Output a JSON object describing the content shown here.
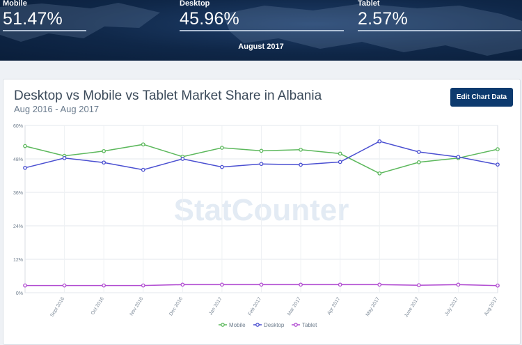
{
  "header": {
    "stats": [
      {
        "label": "Mobile",
        "value": "51.47%"
      },
      {
        "label": "Desktop",
        "value": "45.96%"
      },
      {
        "label": "Tablet",
        "value": "2.57%"
      }
    ],
    "period": "August 2017"
  },
  "chart": {
    "edit_button": "Edit Chart Data",
    "watermark": "StatCounter"
  },
  "chart_data": {
    "type": "line",
    "title": "Desktop vs Mobile vs Tablet Market Share in Albania",
    "subtitle": "Aug 2016 - Aug 2017",
    "categories": [
      "",
      "Sept 2016",
      "Oct 2016",
      "Nov 2016",
      "Dec 2016",
      "Jan 2017",
      "Feb 2017",
      "Mar 2017",
      "Apr 2017",
      "May 2017",
      "June 2017",
      "July 2017",
      "Aug 2017"
    ],
    "ylim": [
      0,
      60
    ],
    "yticks": [
      "0%",
      "12%",
      "24%",
      "36%",
      "48%",
      "60%"
    ],
    "grid": true,
    "legend_position": "bottom",
    "series": [
      {
        "name": "Mobile",
        "color": "#5cb85c",
        "values": [
          52.6,
          49.1,
          50.8,
          53.2,
          48.8,
          52.0,
          50.9,
          51.3,
          49.9,
          42.8,
          46.8,
          48.3,
          51.47
        ]
      },
      {
        "name": "Desktop",
        "color": "#4a4fd1",
        "values": [
          44.8,
          48.3,
          46.7,
          44.1,
          48.0,
          45.1,
          46.2,
          45.9,
          46.9,
          54.3,
          50.5,
          48.7,
          45.96
        ]
      },
      {
        "name": "Tablet",
        "color": "#b04ad1",
        "values": [
          2.6,
          2.6,
          2.6,
          2.6,
          2.9,
          2.9,
          2.9,
          2.9,
          2.9,
          2.9,
          2.7,
          2.9,
          2.57
        ]
      }
    ]
  }
}
